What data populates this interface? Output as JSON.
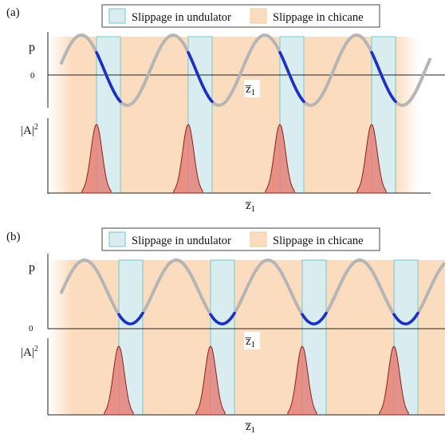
{
  "panels": [
    {
      "tag": "(a)",
      "legend": {
        "undulator": "Slippage in undulator",
        "chicane": "Slippage in chicane"
      },
      "p_label": "p",
      "zero_label": "0",
      "z_label_top": "z̅",
      "z_label_top_sub": "1",
      "power_label": "|A|",
      "power_sup": "2",
      "z_label_bottom": "z̅",
      "z_label_bottom_sub": "1"
    },
    {
      "tag": "(b)",
      "legend": {
        "undulator": "Slippage in undulator",
        "chicane": "Slippage in chicane"
      },
      "p_label": "p",
      "zero_label": "0",
      "z_label_top": "z̅",
      "z_label_top_sub": "1",
      "power_label": "|A|",
      "power_sup": "2",
      "z_label_bottom": "z̅",
      "z_label_bottom_sub": "1"
    }
  ],
  "colors": {
    "undulator_fill": "#d9ecef",
    "undulator_edge": "#74c8c8",
    "chicane_fill": "#fbdcbf",
    "curve_gray": "#b5b5b5",
    "curve_blue": "#1a2fc8",
    "pulse_fill": "#e38278",
    "pulse_edge": "#8a1f1f"
  }
}
